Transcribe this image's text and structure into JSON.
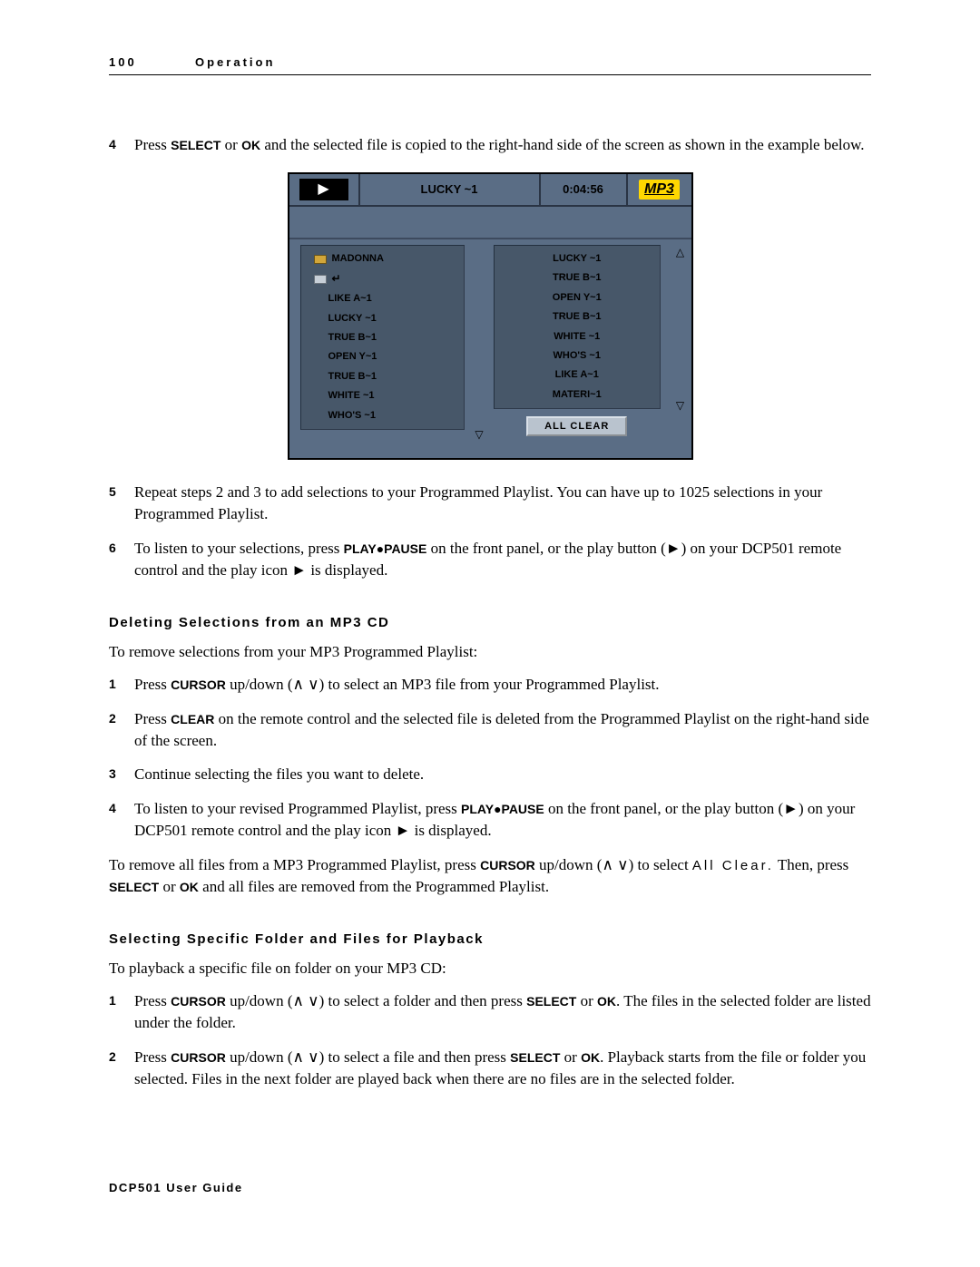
{
  "header": {
    "page_number": "100",
    "section": "Operation"
  },
  "footer": "DCP501 User Guide",
  "steps_top": [
    {
      "n": "4",
      "before": "Press ",
      "kw1": "SELECT",
      "mid1": " or ",
      "kw2": "OK",
      "after": " and the selected file is copied to the right-hand side of the screen as shown in the example below."
    },
    {
      "n": "5",
      "text": "Repeat steps 2 and 3 to add selections to your Programmed Playlist. You can have up to 1025 selections in your Programmed Playlist."
    },
    {
      "n": "6",
      "before": "To listen to your selections, press ",
      "kw1": "PLAY●PAUSE",
      "mid1": " on the front panel, or the play button (►) on your DCP501 remote control and the play icon ► is displayed."
    }
  ],
  "deleting": {
    "heading": "Deleting Selections from an MP3 CD",
    "intro": "To remove selections from your MP3 Programmed Playlist:",
    "steps": [
      {
        "n": "1",
        "before": "Press ",
        "kw1": "CURSOR",
        "after": " up/down (∧ ∨) to select an MP3 file from your Programmed Playlist."
      },
      {
        "n": "2",
        "before": "Press ",
        "kw1": "CLEAR",
        "after": " on the remote control and the selected file is deleted from the Programmed Playlist on the right-hand side of the screen."
      },
      {
        "n": "3",
        "text": "Continue selecting the files you want to delete."
      },
      {
        "n": "4",
        "before": "To listen to your revised Programmed Playlist, press ",
        "kw1": "PLAY●PAUSE",
        "after": " on the front panel, or the play button (►) on your DCP501 remote control and the play icon ► is displayed."
      }
    ],
    "outro_before": "To remove all files from a MP3 Programmed Playlist, press ",
    "outro_kw1": "CURSOR",
    "outro_mid1": " up/down (∧ ∨) to select ",
    "outro_allclear": "All Clear.",
    "outro_mid2": " Then, press ",
    "outro_kw2": "SELECT",
    "outro_mid3": " or ",
    "outro_kw3": "OK",
    "outro_after": " and all files are removed from the Programmed Playlist."
  },
  "selecting": {
    "heading": "Selecting Specific Folder and Files for Playback",
    "intro": "To playback a specific file on folder on your MP3 CD:",
    "steps": [
      {
        "n": "1",
        "before": "Press ",
        "kw1": "CURSOR",
        "mid1": " up/down (∧ ∨) to select a folder and then press ",
        "kw2": "SELECT",
        "mid2": " or ",
        "kw3": "OK",
        "after": ". The files in the selected folder are listed under the folder."
      },
      {
        "n": "2",
        "before": "Press ",
        "kw1": "CURSOR",
        "mid1": " up/down (∧ ∨) to select a file and then press ",
        "kw2": "SELECT",
        "mid2": " or ",
        "kw3": "OK",
        "after": ". Playback starts from the file or folder you selected. Files in the next folder are played back when there are no files are in the selected folder."
      }
    ]
  },
  "player": {
    "title": "LUCKY ~1",
    "time": "0:04:56",
    "logo": "MP3",
    "left_folder": "MADONNA",
    "left_items": [
      "LIKE A~1",
      "LUCKY ~1",
      "TRUE B~1",
      "OPEN Y~1",
      "TRUE B~1",
      "WHITE ~1",
      "WHO'S ~1"
    ],
    "right_items": [
      "LUCKY ~1",
      "TRUE B~1",
      "OPEN Y~1",
      "TRUE B~1",
      "WHITE ~1",
      "WHO'S ~1",
      "LIKE A~1",
      "MATERI~1"
    ],
    "all_clear": "ALL CLEAR",
    "colors": {
      "panel_bg": "#5a6d85",
      "list_bg": "#475769",
      "border_dark": "#2a3444",
      "button_bg": "#b9c3ce",
      "logo_bg": "#ffd700",
      "folder_closed": "#d2a63a",
      "text": "#000000"
    }
  }
}
